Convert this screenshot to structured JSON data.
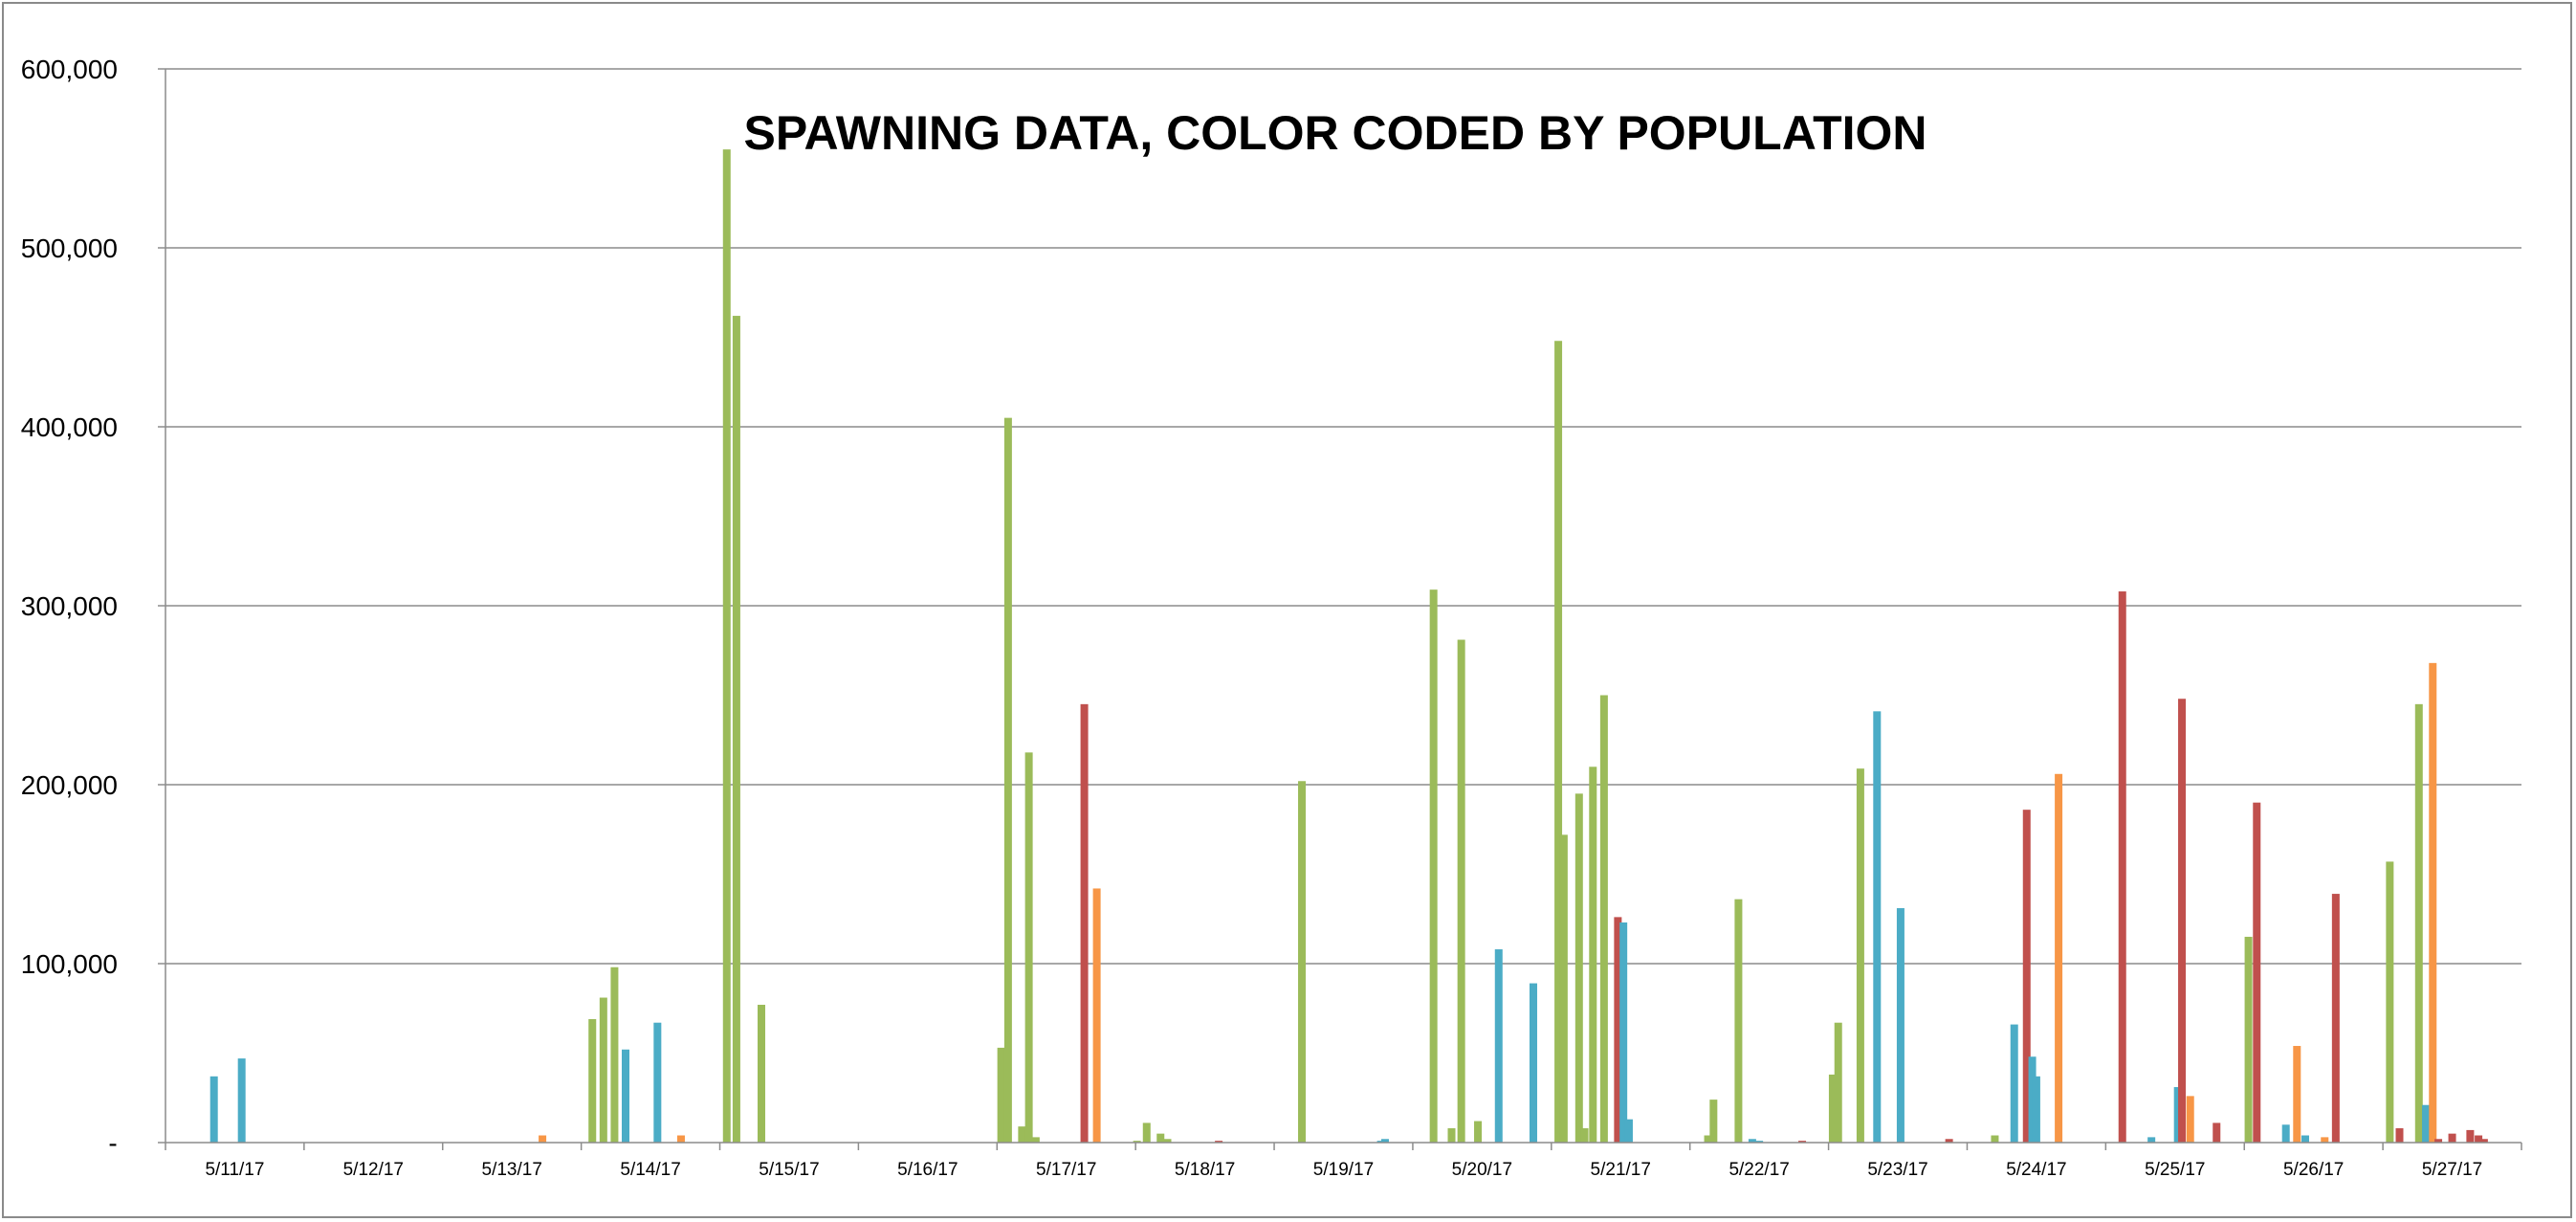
{
  "chart_data": {
    "type": "bar",
    "title": "SPAWNING DATA, COLOR CODED BY POPULATION",
    "xlabel": "",
    "ylabel": "",
    "ylim": [
      0,
      600000
    ],
    "yticks": [
      0,
      100000,
      200000,
      300000,
      400000,
      500000,
      600000
    ],
    "ytick_labels": [
      "-",
      "100,000",
      "200,000",
      "300,000",
      "400,000",
      "500,000",
      "600,000"
    ],
    "categories": [
      "5/11/17",
      "5/12/17",
      "5/13/17",
      "5/14/17",
      "5/15/17",
      "5/16/17",
      "5/17/17",
      "5/18/17",
      "5/19/17",
      "5/20/17",
      "5/21/17",
      "5/22/17",
      "5/23/17",
      "5/24/17",
      "5/25/17",
      "5/26/17",
      "5/27/17"
    ],
    "grid": true,
    "legend": "none",
    "colors": {
      "green": "#9bbb59",
      "blue": "#4bacc6",
      "orange": "#f79646",
      "red": "#c0504d"
    },
    "bars": [
      {
        "date": "5/11/17",
        "offset": -0.15,
        "color": "blue",
        "value": 37000
      },
      {
        "date": "5/11/17",
        "offset": 0.05,
        "color": "blue",
        "value": 47000
      },
      {
        "date": "5/13/17",
        "offset": 0.22,
        "color": "orange",
        "value": 4000
      },
      {
        "date": "5/14/17",
        "offset": -0.42,
        "color": "green",
        "value": 69000
      },
      {
        "date": "5/14/17",
        "offset": -0.34,
        "color": "green",
        "value": 81000
      },
      {
        "date": "5/14/17",
        "offset": -0.26,
        "color": "green",
        "value": 98000
      },
      {
        "date": "5/14/17",
        "offset": -0.18,
        "color": "blue",
        "value": 52000
      },
      {
        "date": "5/14/17",
        "offset": 0.05,
        "color": "blue",
        "value": 67000
      },
      {
        "date": "5/14/17",
        "offset": 0.22,
        "color": "orange",
        "value": 4000
      },
      {
        "date": "5/15/17",
        "offset": -0.45,
        "color": "green",
        "value": 555000
      },
      {
        "date": "5/15/17",
        "offset": -0.38,
        "color": "green",
        "value": 462000
      },
      {
        "date": "5/15/17",
        "offset": -0.2,
        "color": "green",
        "value": 77000
      },
      {
        "date": "5/17/17",
        "offset": -0.47,
        "color": "green",
        "value": 53000
      },
      {
        "date": "5/17/17",
        "offset": -0.42,
        "color": "green",
        "value": 405000
      },
      {
        "date": "5/17/17",
        "offset": -0.32,
        "color": "green",
        "value": 9000
      },
      {
        "date": "5/17/17",
        "offset": -0.27,
        "color": "green",
        "value": 218000
      },
      {
        "date": "5/17/17",
        "offset": -0.22,
        "color": "green",
        "value": 3000
      },
      {
        "date": "5/17/17",
        "offset": 0.13,
        "color": "red",
        "value": 245000
      },
      {
        "date": "5/17/17",
        "offset": 0.22,
        "color": "orange",
        "value": 142000
      },
      {
        "date": "5/18/17",
        "offset": -0.49,
        "color": "green",
        "value": 1000
      },
      {
        "date": "5/18/17",
        "offset": -0.42,
        "color": "green",
        "value": 11000
      },
      {
        "date": "5/18/17",
        "offset": -0.32,
        "color": "green",
        "value": 5000
      },
      {
        "date": "5/18/17",
        "offset": -0.27,
        "color": "green",
        "value": 2000
      },
      {
        "date": "5/18/17",
        "offset": 0.1,
        "color": "red",
        "value": 1000
      },
      {
        "date": "5/19/17",
        "offset": -0.3,
        "color": "green",
        "value": 202000
      },
      {
        "date": "5/19/17",
        "offset": 0.27,
        "color": "blue",
        "value": 1000
      },
      {
        "date": "5/19/17",
        "offset": 0.3,
        "color": "blue",
        "value": 2000
      },
      {
        "date": "5/20/17",
        "offset": -0.35,
        "color": "green",
        "value": 309000
      },
      {
        "date": "5/20/17",
        "offset": -0.22,
        "color": "green",
        "value": 8000
      },
      {
        "date": "5/20/17",
        "offset": -0.15,
        "color": "green",
        "value": 281000
      },
      {
        "date": "5/20/17",
        "offset": -0.03,
        "color": "green",
        "value": 12000
      },
      {
        "date": "5/20/17",
        "offset": 0.12,
        "color": "blue",
        "value": 108000
      },
      {
        "date": "5/20/17",
        "offset": 0.37,
        "color": "blue",
        "value": 89000
      },
      {
        "date": "5/21/17",
        "offset": -0.45,
        "color": "green",
        "value": 448000
      },
      {
        "date": "5/21/17",
        "offset": -0.41,
        "color": "green",
        "value": 172000
      },
      {
        "date": "5/21/17",
        "offset": -0.3,
        "color": "green",
        "value": 195000
      },
      {
        "date": "5/21/17",
        "offset": -0.26,
        "color": "green",
        "value": 8000
      },
      {
        "date": "5/21/17",
        "offset": -0.2,
        "color": "green",
        "value": 210000
      },
      {
        "date": "5/21/17",
        "offset": -0.12,
        "color": "green",
        "value": 250000
      },
      {
        "date": "5/21/17",
        "offset": -0.02,
        "color": "red",
        "value": 126000
      },
      {
        "date": "5/21/17",
        "offset": 0.02,
        "color": "blue",
        "value": 123000
      },
      {
        "date": "5/21/17",
        "offset": 0.06,
        "color": "blue",
        "value": 13000
      },
      {
        "date": "5/22/17",
        "offset": -0.37,
        "color": "green",
        "value": 4000
      },
      {
        "date": "5/22/17",
        "offset": -0.33,
        "color": "green",
        "value": 24000
      },
      {
        "date": "5/22/17",
        "offset": -0.15,
        "color": "green",
        "value": 136000
      },
      {
        "date": "5/22/17",
        "offset": -0.05,
        "color": "blue",
        "value": 2000
      },
      {
        "date": "5/22/17",
        "offset": 0.0,
        "color": "blue",
        "value": 1000
      },
      {
        "date": "5/22/17",
        "offset": 0.31,
        "color": "red",
        "value": 1000
      },
      {
        "date": "5/23/17",
        "offset": -0.47,
        "color": "green",
        "value": 38000
      },
      {
        "date": "5/23/17",
        "offset": -0.43,
        "color": "green",
        "value": 67000
      },
      {
        "date": "5/23/17",
        "offset": -0.27,
        "color": "green",
        "value": 209000
      },
      {
        "date": "5/23/17",
        "offset": -0.15,
        "color": "blue",
        "value": 241000
      },
      {
        "date": "5/23/17",
        "offset": 0.02,
        "color": "blue",
        "value": 131000
      },
      {
        "date": "5/23/17",
        "offset": 0.37,
        "color": "red",
        "value": 2000
      },
      {
        "date": "5/24/17",
        "offset": -0.3,
        "color": "green",
        "value": 4000
      },
      {
        "date": "5/24/17",
        "offset": -0.16,
        "color": "blue",
        "value": 66000
      },
      {
        "date": "5/24/17",
        "offset": -0.07,
        "color": "red",
        "value": 186000
      },
      {
        "date": "5/24/17",
        "offset": -0.03,
        "color": "blue",
        "value": 48000
      },
      {
        "date": "5/24/17",
        "offset": 0.0,
        "color": "blue",
        "value": 37000
      },
      {
        "date": "5/24/17",
        "offset": 0.16,
        "color": "orange",
        "value": 206000
      },
      {
        "date": "5/25/17",
        "offset": -0.38,
        "color": "red",
        "value": 308000
      },
      {
        "date": "5/25/17",
        "offset": -0.17,
        "color": "blue",
        "value": 3000
      },
      {
        "date": "5/25/17",
        "offset": 0.02,
        "color": "blue",
        "value": 31000
      },
      {
        "date": "5/25/17",
        "offset": 0.05,
        "color": "red",
        "value": 248000
      },
      {
        "date": "5/25/17",
        "offset": 0.11,
        "color": "orange",
        "value": 26000
      },
      {
        "date": "5/25/17",
        "offset": 0.3,
        "color": "red",
        "value": 11000
      },
      {
        "date": "5/26/17",
        "offset": -0.47,
        "color": "green",
        "value": 115000
      },
      {
        "date": "5/26/17",
        "offset": -0.41,
        "color": "red",
        "value": 190000
      },
      {
        "date": "5/26/17",
        "offset": -0.2,
        "color": "blue",
        "value": 10000
      },
      {
        "date": "5/26/17",
        "offset": -0.12,
        "color": "orange",
        "value": 54000
      },
      {
        "date": "5/26/17",
        "offset": -0.06,
        "color": "blue",
        "value": 4000
      },
      {
        "date": "5/26/17",
        "offset": 0.08,
        "color": "orange",
        "value": 3000
      },
      {
        "date": "5/26/17",
        "offset": 0.16,
        "color": "red",
        "value": 139000
      },
      {
        "date": "5/27/17",
        "offset": -0.45,
        "color": "green",
        "value": 157000
      },
      {
        "date": "5/27/17",
        "offset": -0.38,
        "color": "red",
        "value": 8000
      },
      {
        "date": "5/27/17",
        "offset": -0.24,
        "color": "green",
        "value": 245000
      },
      {
        "date": "5/27/17",
        "offset": -0.19,
        "color": "blue",
        "value": 21000
      },
      {
        "date": "5/27/17",
        "offset": -0.14,
        "color": "orange",
        "value": 268000
      },
      {
        "date": "5/27/17",
        "offset": -0.1,
        "color": "red",
        "value": 2000
      },
      {
        "date": "5/27/17",
        "offset": 0.0,
        "color": "red",
        "value": 5000
      },
      {
        "date": "5/27/17",
        "offset": 0.13,
        "color": "red",
        "value": 7000
      },
      {
        "date": "5/27/17",
        "offset": 0.19,
        "color": "red",
        "value": 4000
      },
      {
        "date": "5/27/17",
        "offset": 0.23,
        "color": "red",
        "value": 2000
      }
    ]
  }
}
